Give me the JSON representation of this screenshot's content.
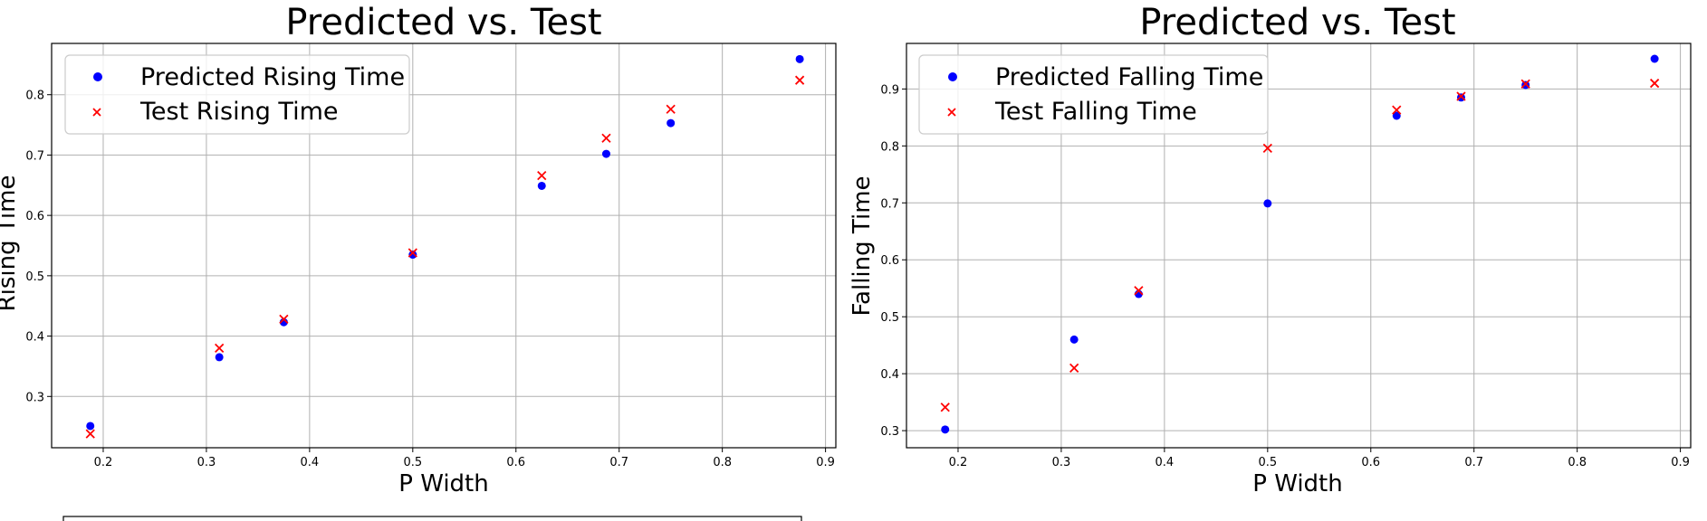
{
  "colors": {
    "predicted": "#0000ff",
    "test": "#ff0000",
    "grid": "#b0b0b0",
    "axis": "#000000"
  },
  "chart_data": [
    {
      "type": "scatter",
      "title": "Predicted vs. Test",
      "xlabel": "P Width",
      "ylabel": "Rising Time",
      "xlim": [
        0.15,
        0.91
      ],
      "ylim": [
        0.215,
        0.885
      ],
      "xticks": [
        0.2,
        0.3,
        0.4,
        0.5,
        0.6,
        0.7,
        0.8,
        0.9
      ],
      "yticks": [
        0.3,
        0.4,
        0.5,
        0.6,
        0.7,
        0.8
      ],
      "grid": true,
      "legend": "top-left",
      "series": [
        {
          "name": "Predicted Rising Time",
          "marker": "circle",
          "color": "#0000ff",
          "x": [
            0.1875,
            0.3125,
            0.375,
            0.5,
            0.625,
            0.6875,
            0.75,
            0.875
          ],
          "y": [
            0.251,
            0.365,
            0.423,
            0.535,
            0.649,
            0.702,
            0.753,
            0.859
          ]
        },
        {
          "name": "Test Rising Time",
          "marker": "x",
          "color": "#ff0000",
          "x": [
            0.1875,
            0.3125,
            0.375,
            0.5,
            0.625,
            0.6875,
            0.75,
            0.875
          ],
          "y": [
            0.238,
            0.38,
            0.428,
            0.538,
            0.666,
            0.728,
            0.776,
            0.824
          ]
        }
      ]
    },
    {
      "type": "scatter",
      "title": "Predicted vs. Test",
      "xlabel": "P Width",
      "ylabel": "Falling Time",
      "xlim": [
        0.15,
        0.91
      ],
      "ylim": [
        0.27,
        0.98
      ],
      "xticks": [
        0.2,
        0.3,
        0.4,
        0.5,
        0.6,
        0.7,
        0.8,
        0.9
      ],
      "yticks": [
        0.3,
        0.4,
        0.5,
        0.6,
        0.7,
        0.8,
        0.9
      ],
      "grid": true,
      "legend": "top-left",
      "series": [
        {
          "name": "Predicted Falling Time",
          "marker": "circle",
          "color": "#0000ff",
          "x": [
            0.1875,
            0.3125,
            0.375,
            0.5,
            0.625,
            0.6875,
            0.75,
            0.875
          ],
          "y": [
            0.302,
            0.46,
            0.54,
            0.699,
            0.853,
            0.885,
            0.907,
            0.953
          ]
        },
        {
          "name": "Test Falling Time",
          "marker": "x",
          "color": "#ff0000",
          "x": [
            0.1875,
            0.3125,
            0.375,
            0.5,
            0.625,
            0.6875,
            0.75,
            0.875
          ],
          "y": [
            0.341,
            0.41,
            0.546,
            0.796,
            0.863,
            0.887,
            0.909,
            0.91
          ]
        }
      ]
    }
  ]
}
